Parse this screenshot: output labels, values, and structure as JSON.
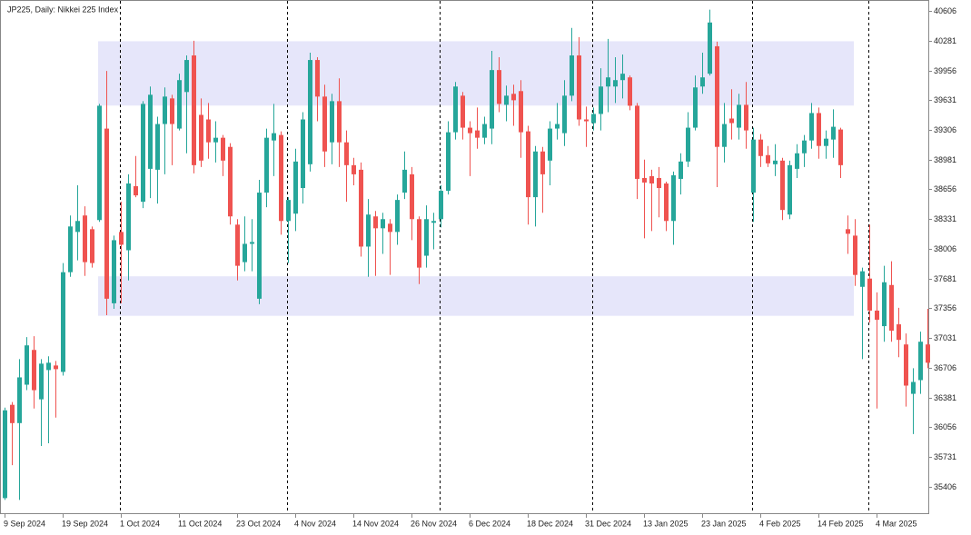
{
  "chart_data": {
    "type": "candlestick",
    "title": "JP225, Daily:  Nikkei 225 Index",
    "categories": [
      "9 Sep 2024",
      null,
      null,
      null,
      null,
      null,
      null,
      null,
      "19 Sep 2024",
      null,
      null,
      null,
      null,
      null,
      null,
      null,
      "1 Oct 2024",
      null,
      null,
      null,
      null,
      null,
      null,
      null,
      "11 Oct 2024",
      null,
      null,
      null,
      null,
      null,
      null,
      null,
      "23 Oct 2024",
      null,
      null,
      null,
      null,
      null,
      null,
      null,
      "4 Nov 2024",
      null,
      null,
      null,
      null,
      null,
      null,
      null,
      "14 Nov 2024",
      null,
      null,
      null,
      null,
      null,
      null,
      null,
      "26 Nov 2024",
      null,
      null,
      null,
      null,
      null,
      null,
      null,
      "6 Dec 2024",
      null,
      null,
      null,
      null,
      null,
      null,
      null,
      "18 Dec 2024",
      null,
      null,
      null,
      null,
      null,
      null,
      null,
      "31 Dec 2024",
      null,
      null,
      null,
      null,
      null,
      null,
      null,
      "13 Jan 2025",
      null,
      null,
      null,
      null,
      null,
      null,
      null,
      "23 Jan 2025",
      null,
      null,
      null,
      null,
      null,
      null,
      null,
      "4 Feb 2025",
      null,
      null,
      null,
      null,
      null,
      null,
      null,
      "14 Feb 2025",
      null,
      null,
      null,
      null,
      null,
      null,
      null,
      "4 Mar 2025",
      null,
      null,
      null,
      null,
      null,
      null,
      null
    ],
    "open": [
      35280,
      36300,
      36100,
      36520,
      36900,
      36360,
      36680,
      36730,
      36660,
      37750,
      38190,
      38370,
      38220,
      38320,
      39320,
      37410,
      38190,
      37990,
      38690,
      38520,
      38880,
      38870,
      39370,
      39650,
      39320,
      39720,
      40120,
      39470,
      39420,
      39170,
      39220,
      39120,
      38270,
      37860,
      38060,
      37460,
      38620,
      39190,
      39250,
      38310,
      38390,
      38670,
      38930,
      40070,
      39670,
      39170,
      39620,
      39170,
      38920,
      38870,
      38030,
      38360,
      38230,
      38280,
      38190,
      38620,
      38820,
      38330,
      37930,
      38290,
      38330,
      38640,
      39280,
      39680,
      39330,
      39300,
      39220,
      39320,
      39960,
      39580,
      39700,
      39730,
      39290,
      38570,
      39070,
      38970,
      39320,
      39270,
      39680,
      40120,
      39420,
      39380,
      39480,
      39780,
      39780,
      39850,
      39880,
      39570,
      38780,
      38800,
      38780,
      38720,
      38310,
      38770,
      38960,
      39330,
      39780,
      39920,
      40220,
      39120,
      39430,
      39330,
      39580,
      38620,
      39200,
      39030,
      38930,
      38970,
      38380,
      38880,
      39050,
      39190,
      39490,
      39130,
      39200,
      39310,
      38220,
      38150,
      37590,
      37680,
      37330,
      37160,
      37610,
      37180,
      36960,
      36420,
      36570,
      36960
    ],
    "high": [
      36270,
      36330,
      36800,
      37040,
      37050,
      36800,
      36830,
      36780,
      37850,
      38370,
      38700,
      38470,
      38250,
      39590,
      39950,
      38150,
      38520,
      38820,
      39020,
      39620,
      39780,
      39450,
      39770,
      39690,
      39920,
      40120,
      40280,
      39650,
      39600,
      39400,
      39250,
      39160,
      38330,
      38360,
      38330,
      38760,
      39320,
      39590,
      39290,
      38570,
      39100,
      39500,
      40150,
      40100,
      39800,
      39700,
      39870,
      39300,
      39000,
      38950,
      38550,
      38420,
      38400,
      38330,
      38600,
      39070,
      38900,
      38360,
      38480,
      38400,
      38700,
      39400,
      39830,
      39720,
      39400,
      39550,
      39450,
      40170,
      40100,
      39790,
      39800,
      39850,
      39350,
      39130,
      39120,
      39400,
      39600,
      39850,
      40420,
      40320,
      39560,
      39550,
      39980,
      40300,
      40100,
      40130,
      39900,
      39600,
      38980,
      38870,
      38900,
      38740,
      38850,
      39050,
      39500,
      39900,
      40150,
      40620,
      40270,
      39600,
      39750,
      39700,
      39830,
      39330,
      39260,
      39130,
      39150,
      39000,
      38970,
      39150,
      39250,
      39600,
      39550,
      39300,
      39530,
      39330,
      38370,
      38330,
      37800,
      38270,
      37530,
      37820,
      37870,
      37360,
      37080,
      36700,
      37100,
      37350
    ],
    "low": [
      35260,
      35640,
      35260,
      36460,
      36260,
      35850,
      35880,
      36160,
      36620,
      37700,
      37880,
      37710,
      37800,
      38300,
      37280,
      37350,
      37410,
      37660,
      38570,
      38450,
      38560,
      38500,
      38820,
      38920,
      39300,
      39050,
      38830,
      38900,
      38990,
      38950,
      38800,
      38270,
      37660,
      37760,
      37760,
      37400,
      38460,
      38800,
      38160,
      37850,
      38200,
      38500,
      38850,
      39400,
      38900,
      38930,
      38900,
      38520,
      38700,
      37920,
      37700,
      37710,
      37950,
      37720,
      38050,
      38550,
      38100,
      37620,
      37800,
      38000,
      38240,
      38600,
      39200,
      39200,
      38800,
      39100,
      39150,
      39150,
      39500,
      39400,
      39350,
      39000,
      38270,
      38250,
      38400,
      38700,
      39200,
      39130,
      39620,
      39350,
      39120,
      39300,
      39300,
      39500,
      39600,
      39650,
      39520,
      38550,
      38120,
      38200,
      38350,
      38200,
      38050,
      38600,
      38900,
      39300,
      39700,
      39900,
      38680,
      38950,
      39200,
      39200,
      39100,
      38300,
      38900,
      38900,
      38800,
      38320,
      38330,
      38780,
      38900,
      39100,
      38990,
      38990,
      39000,
      38780,
      37950,
      37600,
      36800,
      37200,
      36260,
      36990,
      36990,
      36820,
      36280,
      35980,
      36420,
      36700
    ],
    "close": [
      36240,
      36100,
      36600,
      36950,
      36460,
      36750,
      36760,
      36690,
      37750,
      38250,
      38310,
      37860,
      37850,
      39570,
      37460,
      38100,
      38050,
      38720,
      38590,
      39590,
      39690,
      39370,
      39670,
      39370,
      39850,
      40070,
      38920,
      38970,
      39170,
      39220,
      38970,
      38360,
      37820,
      38060,
      38080,
      38620,
      39220,
      39270,
      38310,
      38540,
      38960,
      39420,
      40070,
      39670,
      39070,
      39620,
      39170,
      38920,
      38820,
      38030,
      38380,
      38230,
      38330,
      38190,
      38540,
      38870,
      38330,
      37800,
      38330,
      38310,
      38640,
      39280,
      39780,
      39330,
      39270,
      39220,
      39370,
      39960,
      39590,
      39680,
      39630,
      39280,
      38570,
      39070,
      38820,
      39320,
      39370,
      39680,
      40120,
      39420,
      39400,
      39480,
      39780,
      39880,
      39850,
      39920,
      39570,
      38770,
      38730,
      38720,
      38670,
      38310,
      38810,
      38960,
      39330,
      39770,
      39880,
      40480,
      39120,
      39370,
      39380,
      39580,
      39300,
      39200,
      39020,
      38940,
      38970,
      38430,
      38920,
      39050,
      39190,
      39490,
      39130,
      39210,
      39340,
      38920,
      38170,
      37720,
      37760,
      37330,
      37230,
      37640,
      37110,
      37010,
      36510,
      36550,
      36990,
      36760
    ],
    "up_color": "#26a69a",
    "down_color": "#ef5350",
    "zone_color": "#e6e6fa",
    "zones": [
      {
        "low": 39572,
        "high": 40275
      },
      {
        "low": 37273,
        "high": 37705
      }
    ],
    "ylim": [
      35105,
      40726
    ],
    "yticks": [
      40606,
      40281,
      39956,
      39631,
      39306,
      38981,
      38656,
      38331,
      38006,
      37681,
      37356,
      37031,
      36706,
      36381,
      36056,
      35731,
      35406
    ]
  }
}
